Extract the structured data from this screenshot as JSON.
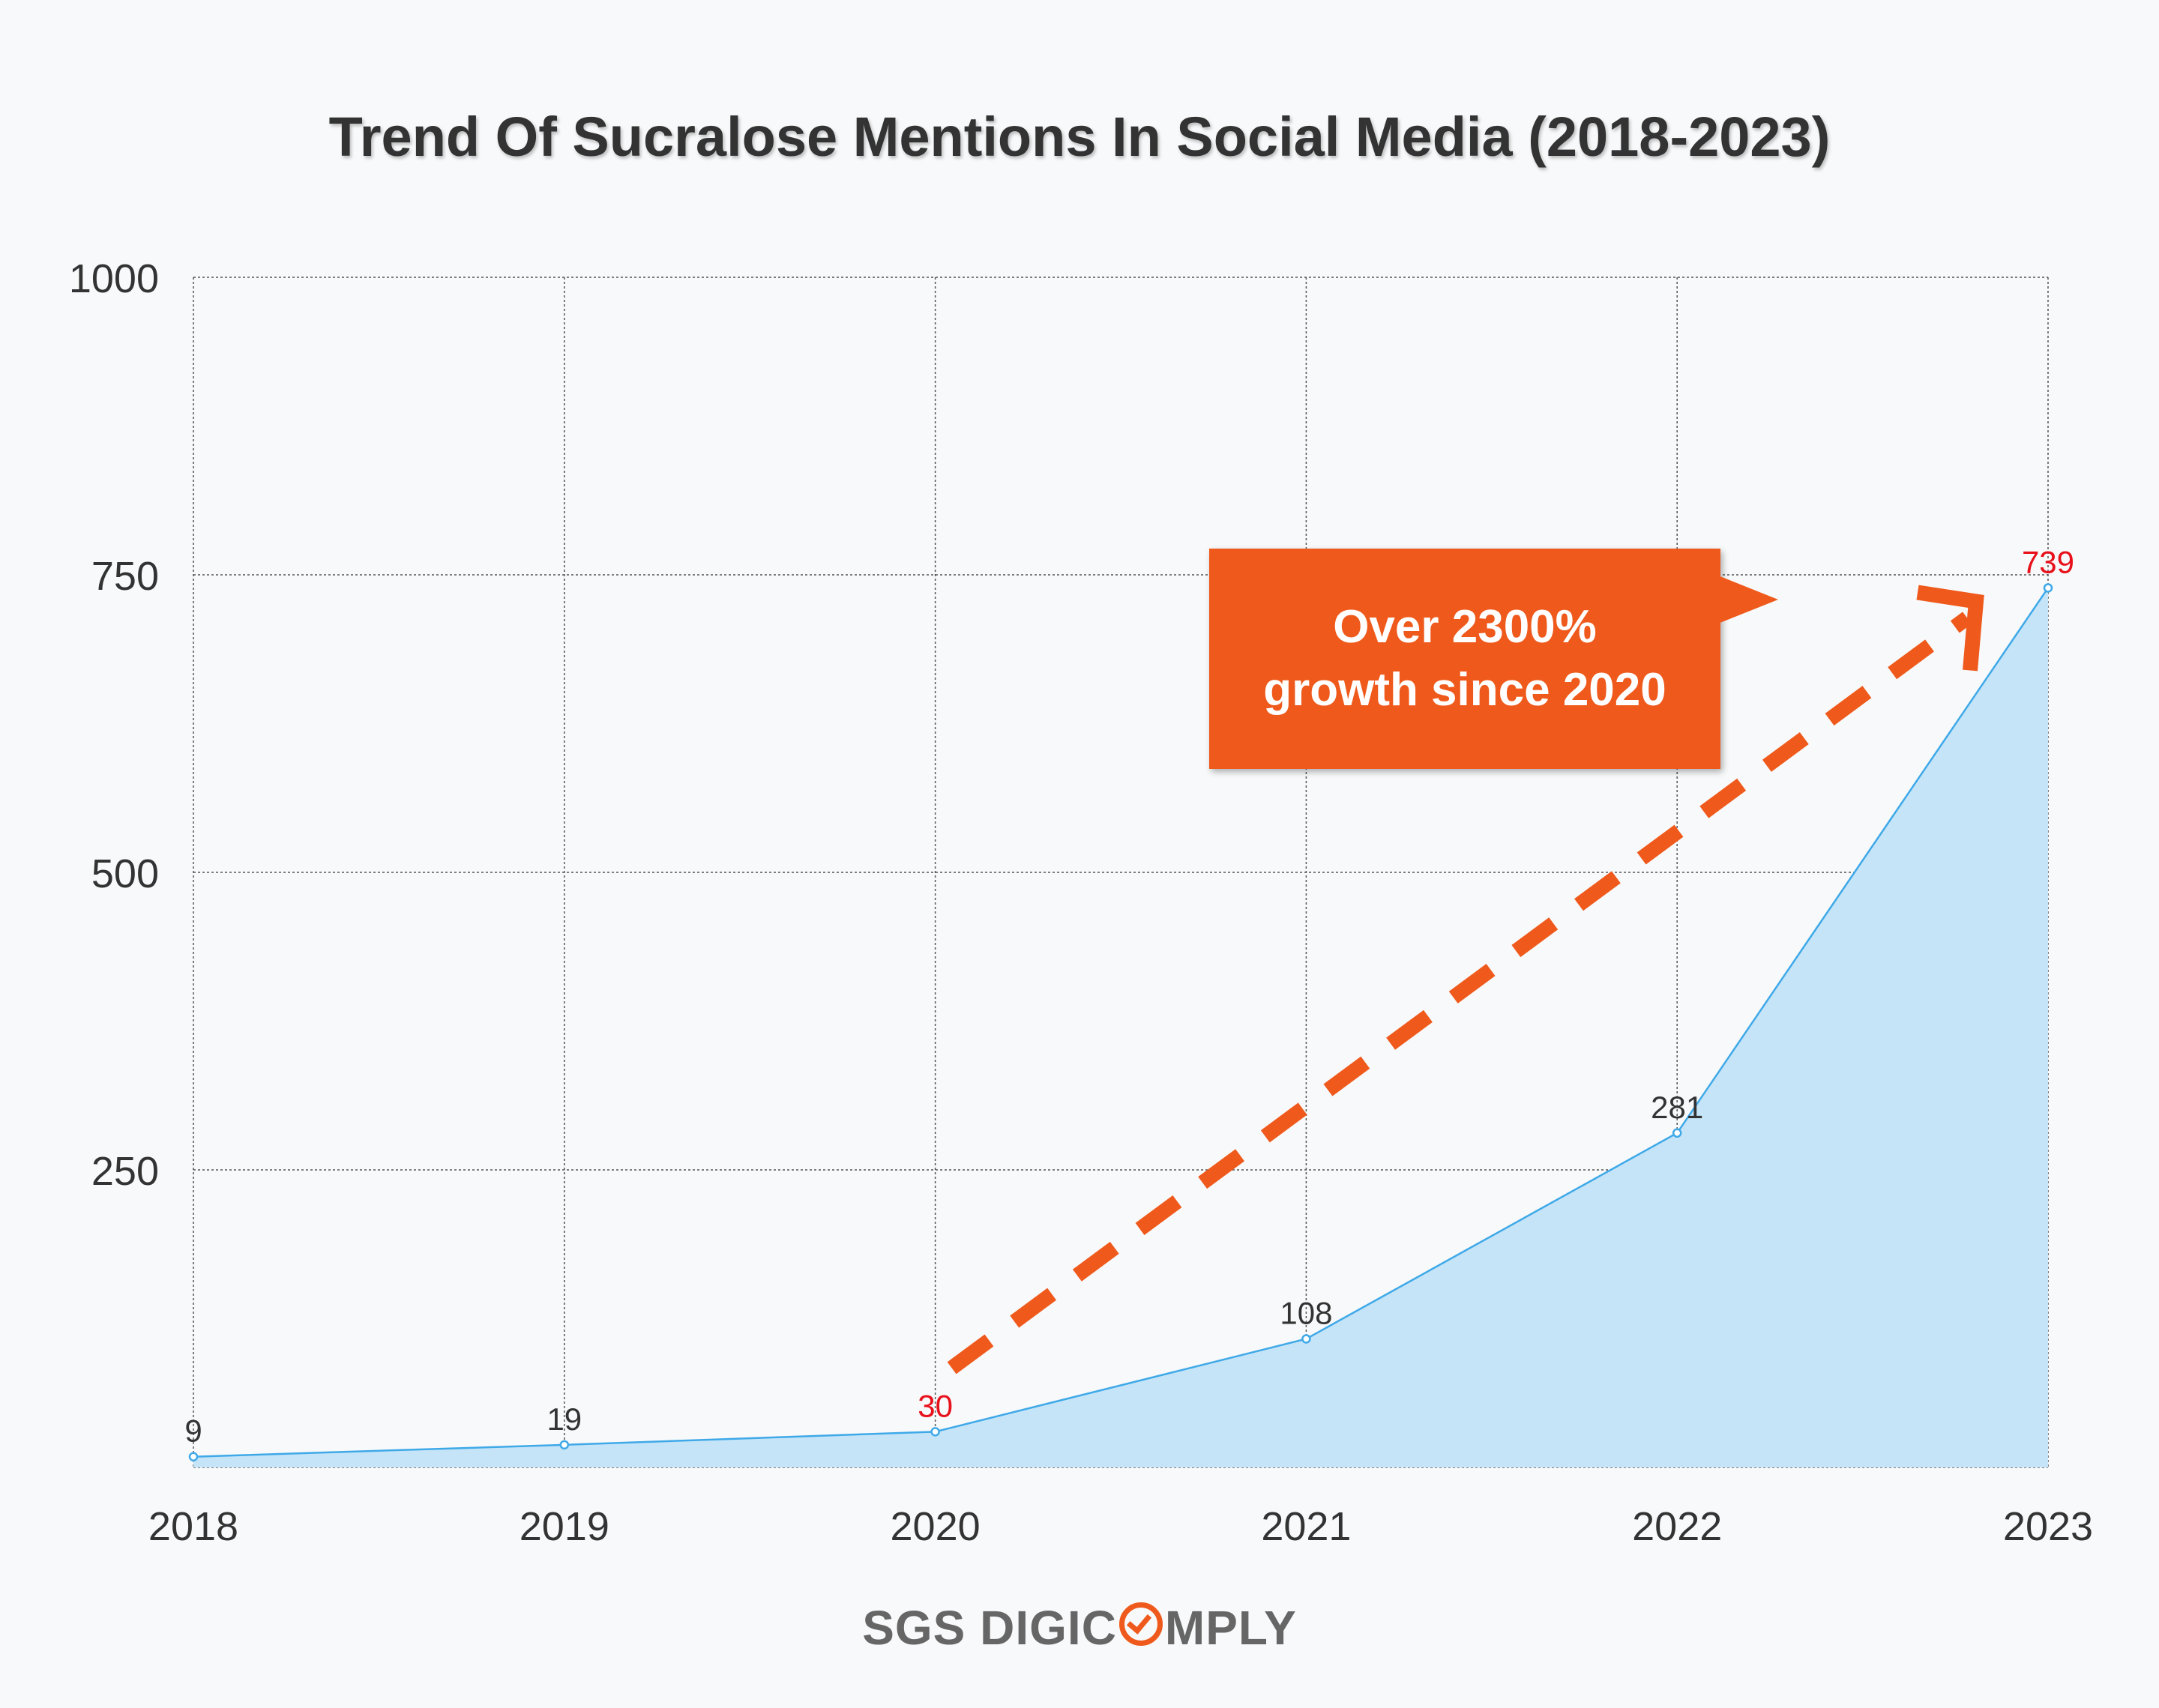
{
  "chart_data": {
    "type": "area",
    "title": "Trend Of Sucralose Mentions In Social Media (2018-2023)",
    "categories": [
      "2018",
      "2019",
      "2020",
      "2021",
      "2022",
      "2023"
    ],
    "values": [
      9,
      19,
      30,
      108,
      281,
      739
    ],
    "highlighted": [
      "2020",
      "2023"
    ],
    "y_ticks": [
      250,
      500,
      750,
      1000
    ],
    "ylim": [
      0,
      1000
    ],
    "grid": true,
    "xlabel": "",
    "ylabel": "",
    "annotation": {
      "line1": "Over 2300%",
      "line2": "growth since 2020",
      "trend_from_year": "2020",
      "trend_to_year": "2023"
    },
    "colors": {
      "line": "#3fa9e8",
      "fill": "#c5e4f8",
      "accent": "#ef5a1c",
      "highlight_label": "#e8101a",
      "label": "#333333"
    }
  },
  "brand": {
    "prefix": "SGS DIGIC",
    "suffix": "MPLY"
  }
}
